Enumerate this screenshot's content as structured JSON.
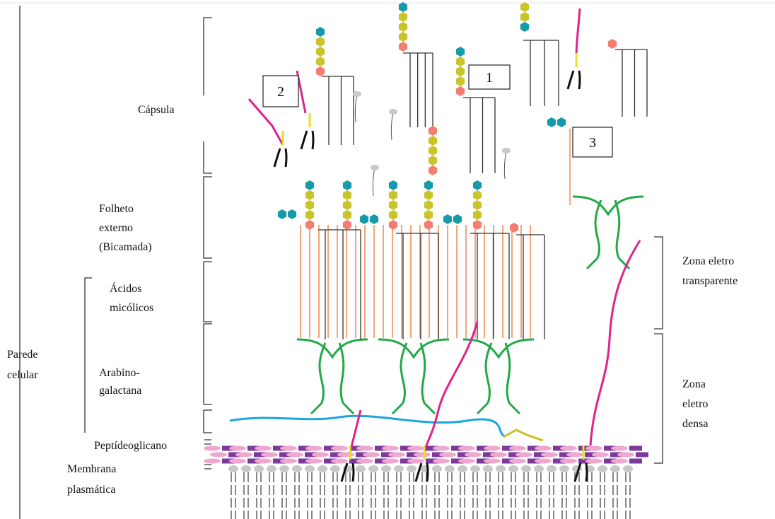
{
  "labels": {
    "capsule": [
      "Cápsula"
    ],
    "outer_leaflet": [
      "Folheto",
      "externo",
      "(Bicamada)"
    ],
    "mycolic_acids": [
      "Ácidos",
      "micólicos"
    ],
    "cell_wall": [
      "Parede",
      "celular"
    ],
    "arabinogalactan": [
      "Arabino-",
      "galactana"
    ],
    "peptidoglycan": [
      "Peptídeoglicano"
    ],
    "plasma_membrane": [
      "Membrana",
      "plasmática"
    ],
    "electron_transparent": [
      "Zona eletro",
      "transparente"
    ],
    "electron_dense": [
      "Zona",
      "eletro",
      "densa"
    ]
  },
  "boxes": [
    "1",
    "2",
    "3"
  ]
}
